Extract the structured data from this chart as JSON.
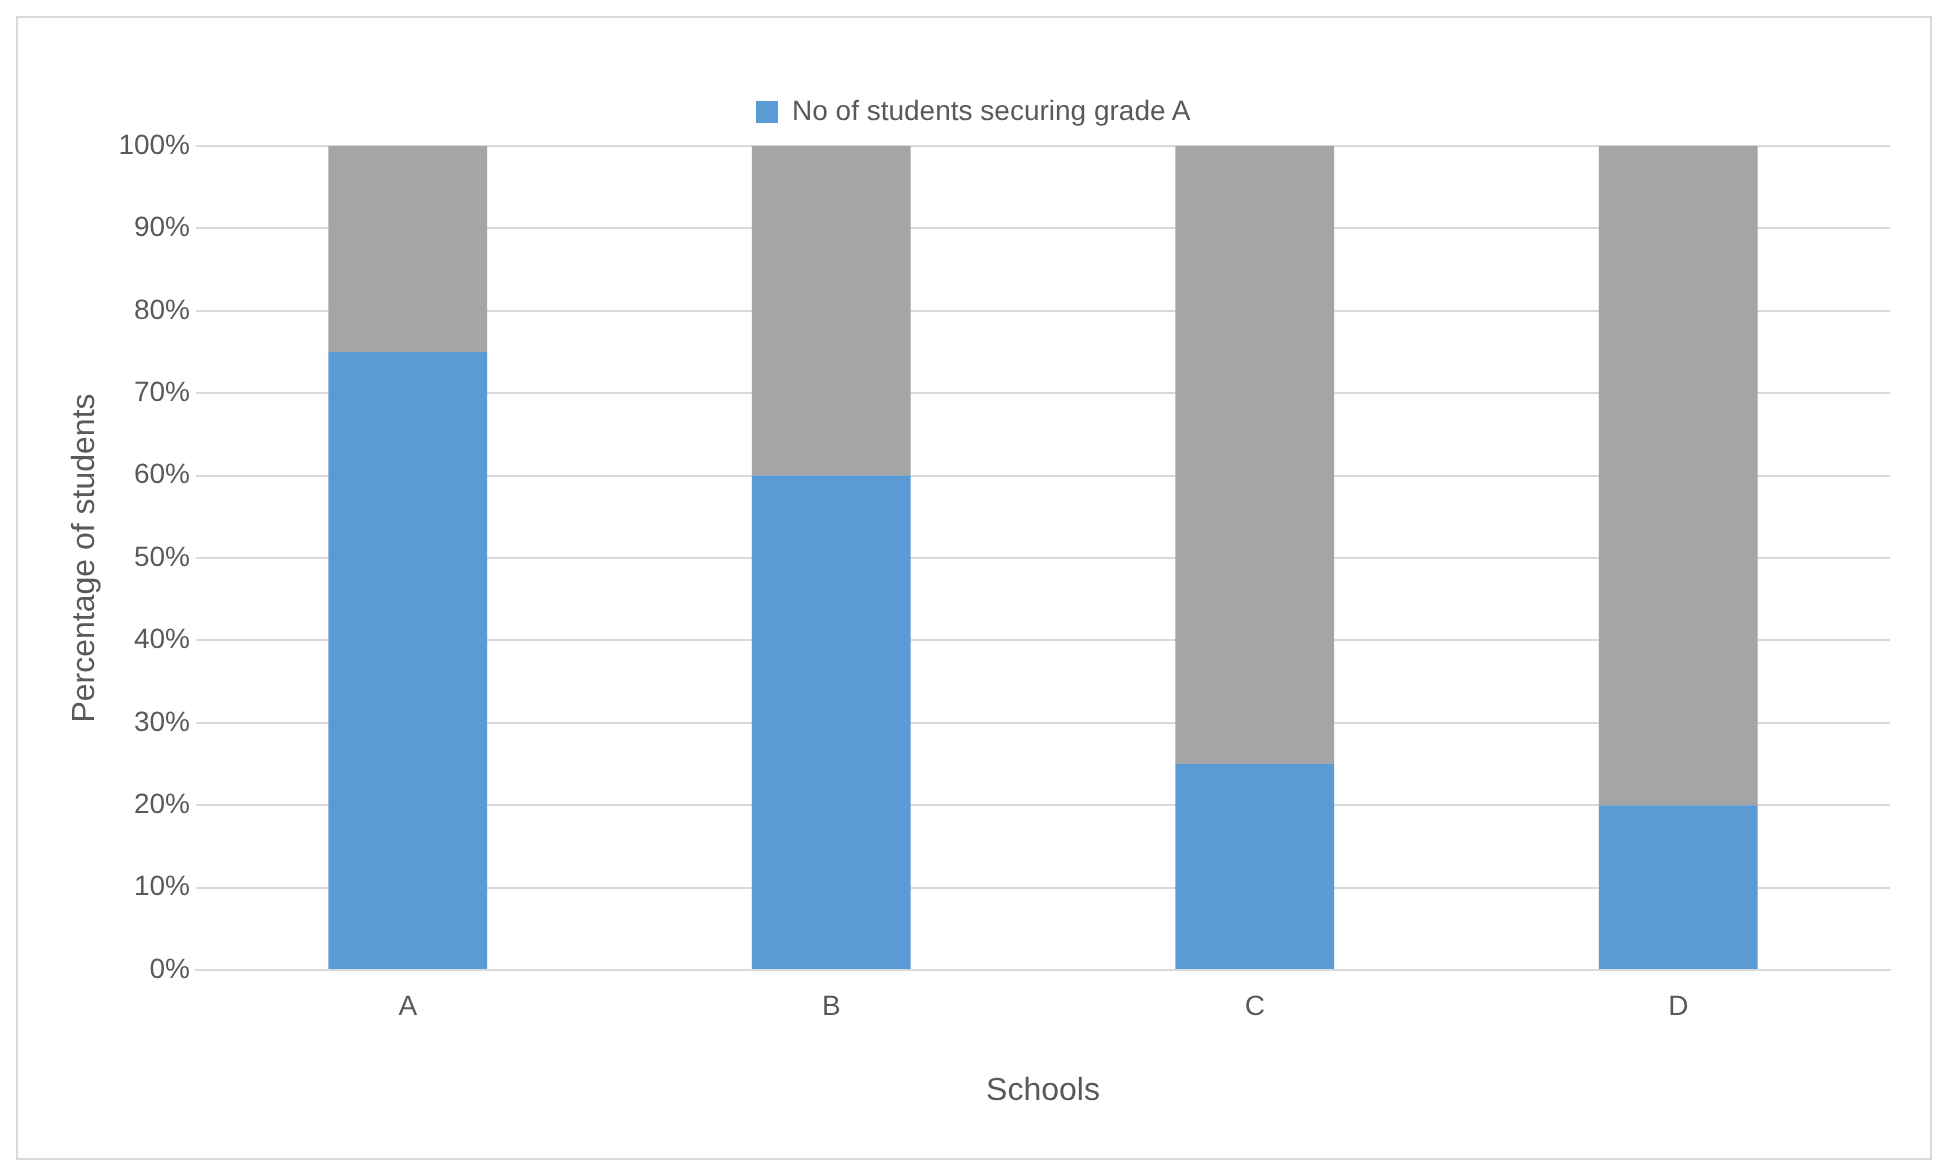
{
  "chart_data": {
    "type": "bar",
    "stacked": true,
    "xlabel": "Schools",
    "ylabel": "Percentage of students",
    "categories": [
      "A",
      "B",
      "C",
      "D"
    ],
    "series": [
      {
        "name": "No of students securing grade A",
        "color": "#5b9bd5",
        "values": [
          75,
          60,
          25,
          20
        ]
      },
      {
        "color": "#a5a5a5",
        "values": [
          25,
          40,
          75,
          80
        ]
      }
    ],
    "ylim": [
      0,
      100
    ],
    "yticks": [
      {
        "value": 0,
        "label": "0%"
      },
      {
        "value": 10,
        "label": "10%"
      },
      {
        "value": 20,
        "label": "20%"
      },
      {
        "value": 30,
        "label": "30%"
      },
      {
        "value": 40,
        "label": "40%"
      },
      {
        "value": 50,
        "label": "50%"
      },
      {
        "value": 60,
        "label": "60%"
      },
      {
        "value": 70,
        "label": "70%"
      },
      {
        "value": 80,
        "label": "80%"
      },
      {
        "value": 90,
        "label": "90%"
      },
      {
        "value": 100,
        "label": "100%"
      }
    ],
    "grid": "y",
    "legend": "top"
  }
}
